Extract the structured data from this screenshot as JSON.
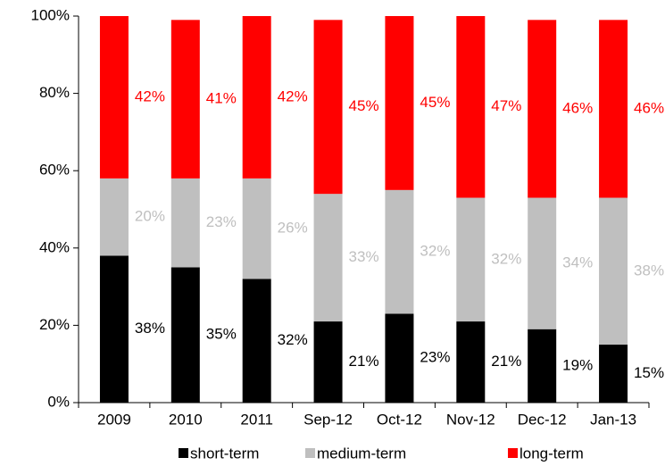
{
  "chart_data": {
    "type": "stacked_bar",
    "categories": [
      "2009",
      "2010",
      "2011",
      "Sep-12",
      "Oct-12",
      "Nov-12",
      "Dec-12",
      "Jan-13"
    ],
    "series": [
      {
        "name": "short-term",
        "color": "#000000",
        "values": [
          38,
          35,
          32,
          21,
          23,
          21,
          19,
          15
        ],
        "value_labels": [
          "38%",
          "35%",
          "32%",
          "21%",
          "23%",
          "21%",
          "19%",
          "15%"
        ]
      },
      {
        "name": "medium-term",
        "color": "#bfbfbf",
        "values": [
          20,
          23,
          26,
          33,
          32,
          32,
          34,
          38
        ],
        "value_labels": [
          "20%",
          "23%",
          "26%",
          "33%",
          "32%",
          "32%",
          "34%",
          "38%"
        ]
      },
      {
        "name": "long-term",
        "color": "#ff0000",
        "values": [
          42,
          41,
          42,
          45,
          45,
          47,
          46,
          46
        ],
        "value_labels": [
          "42%",
          "41%",
          "42%",
          "45%",
          "45%",
          "47%",
          "46%",
          "46%"
        ]
      }
    ],
    "ylim": [
      0,
      100
    ],
    "yticks": [
      {
        "value": 0,
        "label": "0%"
      },
      {
        "value": 20,
        "label": "20%"
      },
      {
        "value": 40,
        "label": "40%"
      },
      {
        "value": 60,
        "label": "60%"
      },
      {
        "value": 80,
        "label": "80%"
      },
      {
        "value": 100,
        "label": "100%"
      }
    ],
    "legend": "bottom"
  }
}
